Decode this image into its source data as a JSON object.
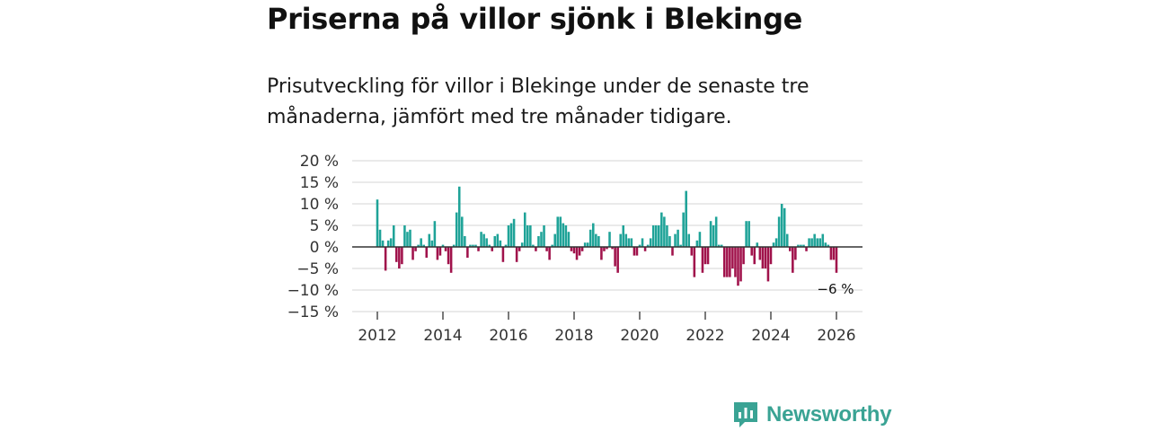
{
  "headline": "Priserna på villor sjönk i Blekinge",
  "subtitle": "Prisutveckling för villor i Blekinge under de senaste tre månaderna, jämfört med tre månader tidigare.",
  "brand": {
    "name": "Newsworthy",
    "color": "#3aa394"
  },
  "colors": {
    "positive": "#1fa398",
    "negative": "#a0124b",
    "grid": "#dddddd",
    "zero": "#333333"
  },
  "chart_data": {
    "type": "bar",
    "title": "Priserna på villor sjönk i Blekinge",
    "xlabel": "",
    "ylabel": "",
    "ylim": [
      -15,
      20
    ],
    "xlim": [
      2011.5,
      2026.5
    ],
    "yticks": [
      20,
      15,
      10,
      5,
      0,
      -5,
      -10,
      -15
    ],
    "ytick_labels": [
      "20 %",
      "15 %",
      "10 %",
      "5 %",
      "0 %",
      "−5 %",
      "−10 %",
      "−15 %"
    ],
    "xticks": [
      2012,
      2014,
      2016,
      2018,
      2020,
      2022,
      2024,
      2026
    ],
    "xtick_labels": [
      "2012",
      "2014",
      "2016",
      "2018",
      "2020",
      "2022",
      "2024",
      "2026"
    ],
    "start_year": 2012,
    "start_month": 1,
    "last_value_label": "−6 %",
    "series": [
      {
        "name": "Prisutveckling",
        "unit": "%",
        "values": [
          11,
          4,
          1.5,
          -5.5,
          1.5,
          2,
          5,
          -3.5,
          -5,
          -4,
          5,
          3.5,
          4,
          -3,
          -1,
          0.5,
          2,
          0.5,
          -2.5,
          3,
          1.5,
          6,
          -3,
          -2,
          0.5,
          -1,
          -4,
          -6,
          0.5,
          8,
          14,
          7,
          2.5,
          -2.5,
          0.5,
          0.5,
          0.5,
          -1,
          3.5,
          3,
          2,
          0.5,
          -1,
          2.5,
          3,
          1.5,
          -3.5,
          0.5,
          5,
          5.5,
          6.5,
          -3.5,
          -1,
          1,
          8,
          5,
          5,
          0.5,
          -1,
          2.5,
          3.5,
          5,
          -1,
          -3,
          0.5,
          3,
          7,
          7,
          5.5,
          5,
          3.5,
          -1,
          -1.5,
          -3,
          -2,
          -1,
          1,
          1,
          4,
          5.5,
          3,
          2.5,
          -3,
          -1,
          -0.5,
          3.5,
          -0.5,
          -4.5,
          -6,
          3,
          5,
          3,
          2,
          2,
          -2,
          -2,
          0.5,
          2,
          -1,
          0.5,
          2,
          5,
          5,
          5,
          8,
          7,
          5,
          2.5,
          -2,
          3,
          4,
          0.5,
          8,
          13,
          3,
          -2,
          -7,
          1.5,
          3.5,
          -6,
          -4,
          -4,
          6,
          5,
          7,
          0.5,
          0.5,
          -7,
          -7,
          -7,
          -5,
          -7,
          -9,
          -8,
          -4,
          6,
          6,
          -2,
          -4,
          1,
          -3,
          -5,
          -5,
          -8,
          -4,
          1,
          2,
          7,
          10,
          9,
          3,
          -1,
          -6,
          -3,
          0.5,
          0.5,
          0.5,
          -1,
          2,
          2,
          3,
          2,
          2,
          3,
          1,
          0.5,
          -3,
          -3,
          -6
        ]
      }
    ]
  }
}
